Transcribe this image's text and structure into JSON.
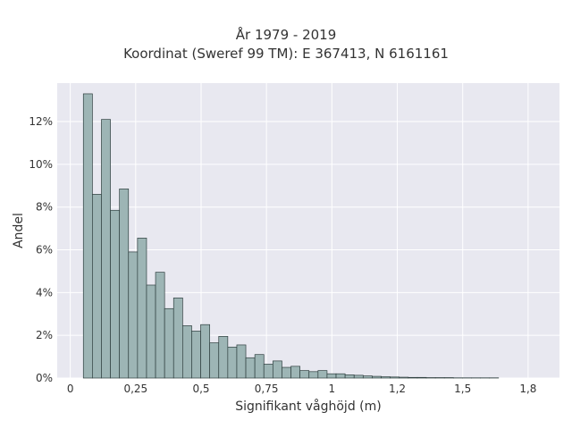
{
  "chart_data": {
    "type": "bar",
    "title": [
      "År 1979 - 2019",
      "Koordinat (Sweref 99 TM): E 367413, N 6161161"
    ],
    "xlabel": "Signifikant våghöjd (m)",
    "ylabel": "Andel",
    "xlim": [
      -0.05,
      1.87
    ],
    "ylim": [
      0,
      13.8
    ],
    "x_ticks": [
      {
        "value": 0,
        "label": "0"
      },
      {
        "value": 0.25,
        "label": "0,25"
      },
      {
        "value": 0.5,
        "label": "0,5"
      },
      {
        "value": 0.75,
        "label": "0,75"
      },
      {
        "value": 1,
        "label": "1"
      },
      {
        "value": 1.25,
        "label": "1,2"
      },
      {
        "value": 1.5,
        "label": "1,5"
      },
      {
        "value": 1.75,
        "label": "1,8"
      }
    ],
    "y_ticks": [
      {
        "value": 0,
        "label": "0%"
      },
      {
        "value": 2,
        "label": "2%"
      },
      {
        "value": 4,
        "label": "4%"
      },
      {
        "value": 6,
        "label": "6%"
      },
      {
        "value": 8,
        "label": "8%"
      },
      {
        "value": 10,
        "label": "10%"
      },
      {
        "value": 12,
        "label": "12%"
      }
    ],
    "bin_start": 0.05,
    "bin_width": 0.0345,
    "values": [
      13.3,
      8.6,
      12.1,
      7.85,
      8.85,
      5.9,
      6.55,
      4.35,
      4.95,
      3.25,
      3.75,
      2.45,
      2.2,
      2.5,
      1.65,
      1.95,
      1.45,
      1.55,
      0.95,
      1.1,
      0.65,
      0.8,
      0.5,
      0.55,
      0.35,
      0.3,
      0.35,
      0.2,
      0.2,
      0.15,
      0.13,
      0.1,
      0.08,
      0.06,
      0.05,
      0.04,
      0.03,
      0.03,
      0.02,
      0.02,
      0.02,
      0.01,
      0.01,
      0.01,
      0.01,
      0.01
    ],
    "grid": true,
    "bar_color": "#9db5b5",
    "bar_edge_color": "#2f3f3f",
    "background_color": "#e8e8f0",
    "grid_color": "#ffffff"
  }
}
